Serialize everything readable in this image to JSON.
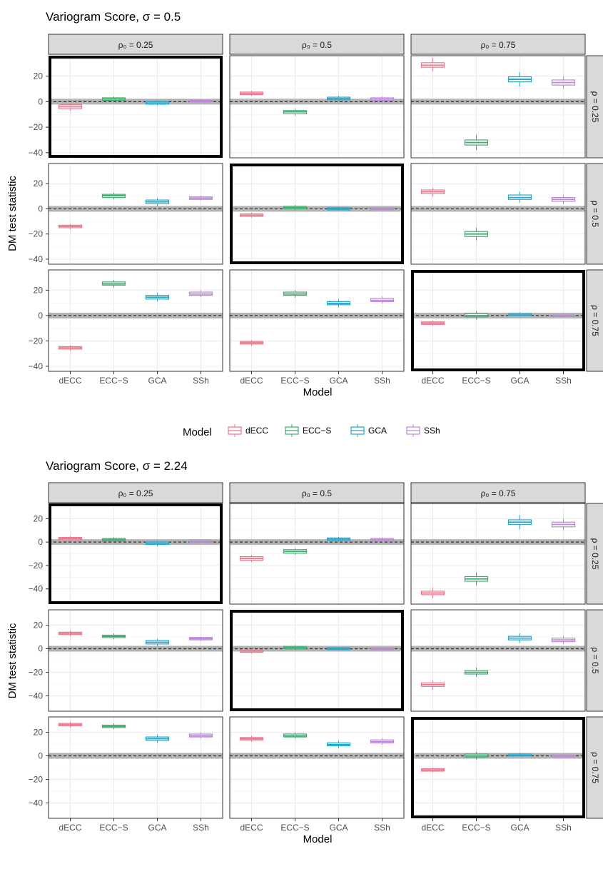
{
  "legend": {
    "title": "Model",
    "entries": [
      {
        "label": "dECC",
        "color": "#E7798D"
      },
      {
        "label": "ECC−S",
        "color": "#3FAB6E"
      },
      {
        "label": "GCA",
        "color": "#26A5C9"
      },
      {
        "label": "SSh",
        "color": "#BC86DB"
      }
    ]
  },
  "chart_data": [
    {
      "type": "box",
      "title": "Variogram Score, σ = 0.5",
      "xlabel": "Model",
      "ylabel": "DM test statistic",
      "categories": [
        "dECC",
        "ECC−S",
        "GCA",
        "SSh"
      ],
      "ylim": [
        -44,
        36
      ],
      "yticks": [
        -40,
        -20,
        0,
        20
      ],
      "reference_line": 0,
      "col_facets": [
        "ρ₀ = 0.25",
        "ρ₀ = 0.5",
        "ρ₀ = 0.75"
      ],
      "row_facets": [
        "ρ = 0.25",
        "ρ = 0.5",
        "ρ = 0.75"
      ],
      "highlighted_panels": [
        [
          0,
          0
        ],
        [
          1,
          1
        ],
        [
          2,
          2
        ]
      ],
      "panels": [
        [
          [
            {
              "median": -4,
              "q1": -5.5,
              "q3": -2.5,
              "min": -7,
              "max": -1
            },
            {
              "median": 2,
              "q1": 1,
              "q3": 3,
              "min": 0,
              "max": 4
            },
            {
              "median": -1,
              "q1": -2,
              "q3": 0,
              "min": -3,
              "max": 1
            },
            {
              "median": 0.5,
              "q1": 0,
              "q3": 1,
              "min": -0.5,
              "max": 1.5
            }
          ],
          [
            {
              "median": 6.5,
              "q1": 5.5,
              "q3": 7.5,
              "min": 4.5,
              "max": 8.5
            },
            {
              "median": -8,
              "q1": -9.5,
              "q3": -7,
              "min": -11,
              "max": -5.5
            },
            {
              "median": 2.5,
              "q1": 1.5,
              "q3": 3.5,
              "min": 0.5,
              "max": 4.5
            },
            {
              "median": 2,
              "q1": 1,
              "q3": 3,
              "min": 0,
              "max": 4
            }
          ],
          [
            {
              "median": 28.5,
              "q1": 27,
              "q3": 30.5,
              "min": 24,
              "max": 34
            },
            {
              "median": -32,
              "q1": -34,
              "q3": -30,
              "min": -38,
              "max": -26
            },
            {
              "median": 17.5,
              "q1": 15.5,
              "q3": 19.5,
              "min": 12,
              "max": 23
            },
            {
              "median": 15,
              "q1": 13,
              "q3": 17,
              "min": 10,
              "max": 20
            }
          ]
        ],
        [
          [
            {
              "median": -14,
              "q1": -15,
              "q3": -13,
              "min": -16.5,
              "max": -12
            },
            {
              "median": 10.5,
              "q1": 9,
              "q3": 11.5,
              "min": 7.5,
              "max": 13
            },
            {
              "median": 5.5,
              "q1": 4,
              "q3": 7,
              "min": 2.5,
              "max": 8.5
            },
            {
              "median": 8.5,
              "q1": 7.5,
              "q3": 9.5,
              "min": 6.5,
              "max": 10.5
            }
          ],
          [
            {
              "median": -5,
              "q1": -6,
              "q3": -4,
              "min": -7,
              "max": -3
            },
            {
              "median": 1,
              "q1": 0,
              "q3": 2,
              "min": -1,
              "max": 3
            },
            {
              "median": 0,
              "q1": -0.8,
              "q3": 0.8,
              "min": -1.5,
              "max": 1.5
            },
            {
              "median": 0,
              "q1": -0.5,
              "q3": 0.5,
              "min": -1,
              "max": 1
            }
          ],
          [
            {
              "median": 13.5,
              "q1": 12,
              "q3": 15,
              "min": 10,
              "max": 17
            },
            {
              "median": -20,
              "q1": -22,
              "q3": -18,
              "min": -25,
              "max": -15
            },
            {
              "median": 9,
              "q1": 7.5,
              "q3": 11,
              "min": 5,
              "max": 13.5
            },
            {
              "median": 7.5,
              "q1": 6,
              "q3": 9,
              "min": 4,
              "max": 11
            }
          ]
        ],
        [
          [
            {
              "median": -25.5,
              "q1": -26.5,
              "q3": -24.5,
              "min": -28,
              "max": -23.5
            },
            {
              "median": 25,
              "q1": 24,
              "q3": 26.5,
              "min": 22,
              "max": 28
            },
            {
              "median": 14.5,
              "q1": 13,
              "q3": 16,
              "min": 11,
              "max": 18
            },
            {
              "median": 17,
              "q1": 16,
              "q3": 18.5,
              "min": 14.5,
              "max": 20
            }
          ],
          [
            {
              "median": -21.5,
              "q1": -22.5,
              "q3": -20.5,
              "min": -24,
              "max": -19.5
            },
            {
              "median": 17,
              "q1": 16,
              "q3": 18.5,
              "min": 14,
              "max": 20
            },
            {
              "median": 9.5,
              "q1": 8.5,
              "q3": 11,
              "min": 6.5,
              "max": 13
            },
            {
              "median": 12,
              "q1": 11,
              "q3": 13.5,
              "min": 9.5,
              "max": 15
            }
          ],
          [
            {
              "median": -6,
              "q1": -7,
              "q3": -5,
              "min": -8,
              "max": -4
            },
            {
              "median": 0,
              "q1": -1,
              "q3": 1.5,
              "min": -3,
              "max": 3.5
            },
            {
              "median": 0.5,
              "q1": 0,
              "q3": 1.5,
              "min": -0.5,
              "max": 2.5
            },
            {
              "median": 0,
              "q1": -0.3,
              "q3": 0.3,
              "min": -0.8,
              "max": 0.8
            }
          ]
        ]
      ]
    },
    {
      "type": "box",
      "title": "Variogram Score, σ = 2.24",
      "xlabel": "Model",
      "ylabel": "DM test statistic",
      "categories": [
        "dECC",
        "ECC−S",
        "GCA",
        "SSh"
      ],
      "ylim": [
        -53,
        33
      ],
      "yticks": [
        -40,
        -20,
        0,
        20
      ],
      "reference_line": 0,
      "col_facets": [
        "ρ₀ = 0.25",
        "ρ₀ = 0.5",
        "ρ₀ = 0.75"
      ],
      "row_facets": [
        "ρ = 0.25",
        "ρ = 0.5",
        "ρ = 0.75"
      ],
      "highlighted_panels": [
        [
          0,
          0
        ],
        [
          1,
          1
        ],
        [
          2,
          2
        ]
      ],
      "panels": [
        [
          [
            {
              "median": 3,
              "q1": 2,
              "q3": 4,
              "min": 1,
              "max": 5
            },
            {
              "median": 2,
              "q1": 1,
              "q3": 3,
              "min": 0,
              "max": 4
            },
            {
              "median": -1,
              "q1": -2,
              "q3": 0,
              "min": -3.5,
              "max": 1
            },
            {
              "median": 0.5,
              "q1": 0,
              "q3": 1,
              "min": -0.5,
              "max": 1.5
            }
          ],
          [
            {
              "median": -14,
              "q1": -15.5,
              "q3": -12.5,
              "min": -17,
              "max": -11
            },
            {
              "median": -8,
              "q1": -9.5,
              "q3": -6.5,
              "min": -11,
              "max": -5
            },
            {
              "median": 2.5,
              "q1": 1.5,
              "q3": 3.5,
              "min": 0.5,
              "max": 4.5
            },
            {
              "median": 2,
              "q1": 1,
              "q3": 3,
              "min": 0,
              "max": 4
            }
          ],
          [
            {
              "median": -43.5,
              "q1": -45,
              "q3": -42,
              "min": -48,
              "max": -39
            },
            {
              "median": -31.5,
              "q1": -33.5,
              "q3": -29.5,
              "min": -37,
              "max": -26
            },
            {
              "median": 17,
              "q1": 15,
              "q3": 19,
              "min": 11,
              "max": 23
            },
            {
              "median": 15,
              "q1": 13,
              "q3": 17,
              "min": 10,
              "max": 20
            }
          ]
        ],
        [
          [
            {
              "median": 13,
              "q1": 12,
              "q3": 14,
              "min": 10.5,
              "max": 15.5
            },
            {
              "median": 10.5,
              "q1": 9.5,
              "q3": 11.5,
              "min": 8,
              "max": 13
            },
            {
              "median": 5.5,
              "q1": 4,
              "q3": 7,
              "min": 2.5,
              "max": 8.5
            },
            {
              "median": 8.5,
              "q1": 7.5,
              "q3": 9.5,
              "min": 6.5,
              "max": 10.5
            }
          ],
          [
            {
              "median": -2,
              "q1": -3,
              "q3": -1,
              "min": -4,
              "max": 0
            },
            {
              "median": 1,
              "q1": 0,
              "q3": 2,
              "min": -1,
              "max": 3
            },
            {
              "median": 0,
              "q1": -0.8,
              "q3": 0.8,
              "min": -1.5,
              "max": 1.5
            },
            {
              "median": 0,
              "q1": -0.5,
              "q3": 0.5,
              "min": -1,
              "max": 1
            }
          ],
          [
            {
              "median": -30.5,
              "q1": -32,
              "q3": -29,
              "min": -34.5,
              "max": -27
            },
            {
              "median": -20,
              "q1": -21.5,
              "q3": -18.5,
              "min": -24,
              "max": -16
            },
            {
              "median": 9,
              "q1": 7.5,
              "q3": 10.5,
              "min": 5,
              "max": 13
            },
            {
              "median": 7.5,
              "q1": 6,
              "q3": 9,
              "min": 4,
              "max": 11
            }
          ]
        ],
        [
          [
            {
              "median": 26.5,
              "q1": 25.5,
              "q3": 27.5,
              "min": 24,
              "max": 29
            },
            {
              "median": 25,
              "q1": 24,
              "q3": 26,
              "min": 22.5,
              "max": 27.5
            },
            {
              "median": 14.5,
              "q1": 13,
              "q3": 16,
              "min": 11,
              "max": 18
            },
            {
              "median": 17,
              "q1": 16,
              "q3": 18.5,
              "min": 14.5,
              "max": 20
            }
          ],
          [
            {
              "median": 14.5,
              "q1": 13.5,
              "q3": 15.5,
              "min": 12,
              "max": 17
            },
            {
              "median": 17,
              "q1": 16,
              "q3": 18.5,
              "min": 14.5,
              "max": 20
            },
            {
              "median": 9.5,
              "q1": 8.5,
              "q3": 11,
              "min": 6.5,
              "max": 13
            },
            {
              "median": 12,
              "q1": 11,
              "q3": 13.5,
              "min": 9.5,
              "max": 15
            }
          ],
          [
            {
              "median": -12,
              "q1": -13,
              "q3": -11,
              "min": -14,
              "max": -10
            },
            {
              "median": 0,
              "q1": -1,
              "q3": 1.5,
              "min": -3,
              "max": 3.5
            },
            {
              "median": 0.5,
              "q1": 0,
              "q3": 1.5,
              "min": -0.5,
              "max": 2.5
            },
            {
              "median": 0,
              "q1": -0.3,
              "q3": 0.3,
              "min": -0.8,
              "max": 0.8
            }
          ]
        ]
      ]
    }
  ]
}
